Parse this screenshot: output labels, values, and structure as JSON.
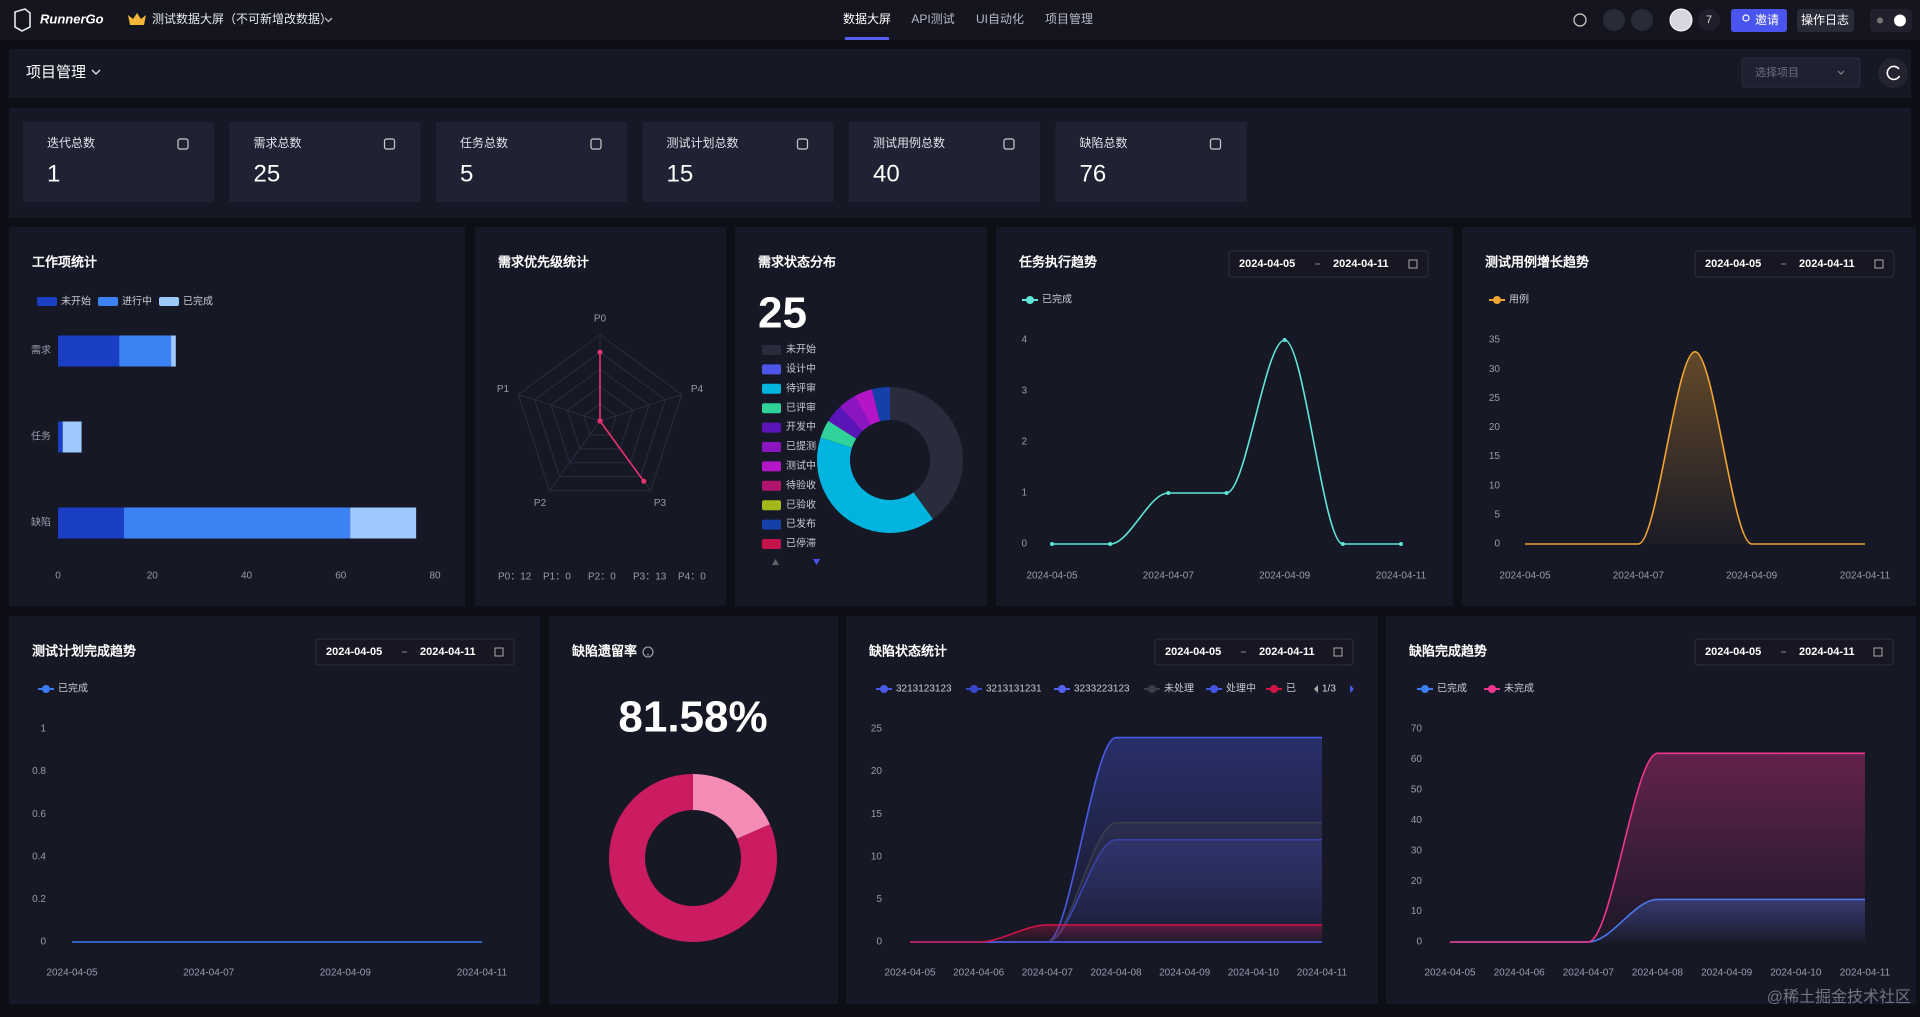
{
  "nav": {
    "logo": "RunnerGo",
    "project": "测试数据大屏（不可新增改数据）",
    "tabs": [
      "数据大屏",
      "API测试",
      "UI自动化",
      "项目管理"
    ],
    "active_tab": 0,
    "member_count": 7,
    "invite": "邀请",
    "log": "操作日志"
  },
  "header": {
    "title": "项目管理",
    "select_placeholder": "选择项目"
  },
  "stats": [
    {
      "label": "迭代总数",
      "value": 1
    },
    {
      "label": "需求总数",
      "value": 25
    },
    {
      "label": "任务总数",
      "value": 5
    },
    {
      "label": "测试计划总数",
      "value": 15
    },
    {
      "label": "测试用例总数",
      "value": 40
    },
    {
      "label": "缺陷总数",
      "value": 76
    }
  ],
  "chart_data": [
    {
      "type": "bar",
      "orientation": "horizontal",
      "stacked": true,
      "title": "工作项统计",
      "categories": [
        "需求",
        "任务",
        "缺陷"
      ],
      "series": [
        {
          "name": "未开始",
          "color": "#1a3fc4",
          "values": [
            13,
            1,
            14
          ]
        },
        {
          "name": "进行中",
          "color": "#3d82f4",
          "values": [
            11,
            0,
            48
          ]
        },
        {
          "name": "已完成",
          "color": "#9ec9fd",
          "values": [
            1,
            4,
            14
          ]
        }
      ],
      "xlim": [
        0,
        80
      ],
      "xticks": [
        0,
        20,
        40,
        60,
        80
      ],
      "grid": false
    },
    {
      "type": "radar",
      "title": "需求优先级统计",
      "categories": [
        "P0",
        "P1",
        "P2",
        "P3",
        "P4"
      ],
      "values": [
        12,
        0,
        0,
        13,
        0
      ],
      "value_labels": [
        "P0：12",
        "P1：0",
        "P2：0",
        "P3：13",
        "P4：0"
      ],
      "color": "#e8336f",
      "rlim": [
        0,
        15
      ]
    },
    {
      "type": "pie",
      "donut": true,
      "clockwise": true,
      "title": "需求状态分布",
      "total": 25,
      "categories": [
        "未开始",
        "设计中",
        "待评审",
        "已评审",
        "开发中",
        "已提测",
        "测试中",
        "待验收",
        "已验收",
        "已发布",
        "已停滞"
      ],
      "values": [
        10,
        0,
        10,
        1,
        1,
        1,
        1,
        0,
        0,
        1,
        0
      ],
      "colors": [
        "#2b2c3b",
        "#4e55e8",
        "#00b4e0",
        "#2fd39a",
        "#5b14b8",
        "#8b15c0",
        "#b315c7",
        "#b0156e",
        "#a5b81a",
        "#1440a8",
        "#c4124a"
      ]
    },
    {
      "type": "line",
      "title": "任务执行趋势",
      "date_range": [
        "2024-04-05",
        "2024-04-11"
      ],
      "categories": [
        "2024-04-05",
        null,
        "2024-04-07",
        null,
        "2024-04-09",
        null,
        "2024-04-11"
      ],
      "series": [
        {
          "name": "已完成",
          "color": "#5ee6d8",
          "values": [
            0,
            0,
            1,
            1,
            4,
            0,
            0
          ]
        }
      ],
      "ylim": [
        0,
        4
      ],
      "yticks": [
        0,
        1,
        2,
        3,
        4
      ],
      "smooth": true,
      "symbols": true,
      "area": false,
      "grid": false
    },
    {
      "type": "line",
      "title": "测试用例增长趋势",
      "date_range": [
        "2024-04-05",
        "2024-04-11"
      ],
      "categories": [
        "2024-04-05",
        null,
        "2024-04-07",
        null,
        "2024-04-09",
        null,
        "2024-04-11"
      ],
      "series": [
        {
          "name": "用例",
          "color": "#f0a431",
          "values": [
            0,
            0,
            0,
            33,
            0,
            0,
            0
          ]
        }
      ],
      "ylim": [
        0,
        35
      ],
      "yticks": [
        0,
        5,
        10,
        15,
        20,
        25,
        30,
        35
      ],
      "smooth": true,
      "symbols": false,
      "area": true,
      "grid": false
    },
    {
      "type": "line",
      "title": "测试计划完成趋势",
      "date_range": [
        "2024-04-05",
        "2024-04-11"
      ],
      "categories": [
        "2024-04-05",
        null,
        "2024-04-07",
        null,
        "2024-04-09",
        null,
        "2024-04-11"
      ],
      "series": [
        {
          "name": "已完成",
          "color": "#3b7bf6",
          "values": [
            0,
            0,
            0,
            0,
            0,
            0,
            0
          ]
        }
      ],
      "ylim": [
        0,
        1
      ],
      "yticks": [
        0,
        0.2,
        0.4,
        0.6,
        0.8,
        1
      ],
      "smooth": true,
      "symbols": false,
      "area": false,
      "grid": false
    },
    {
      "type": "pie",
      "donut": true,
      "clockwise": false,
      "title": "缺陷遗留率",
      "help_icon": true,
      "values": [
        81.58,
        18.42
      ],
      "value_labels": [
        "81.58%",
        null
      ],
      "colors": [
        "#cc1c61",
        "#f48cb6"
      ]
    },
    {
      "type": "line",
      "title": "缺陷状态统计",
      "date_range": [
        "2024-04-05",
        "2024-04-11"
      ],
      "categories": [
        "2024-04-05",
        "2024-04-06",
        "2024-04-07",
        "2024-04-08",
        "2024-04-09",
        "2024-04-10",
        "2024-04-11"
      ],
      "series": [
        {
          "name": "3213123123",
          "color": "#4a5be6",
          "values": [
            0,
            0,
            0,
            24,
            24,
            24,
            24
          ]
        },
        {
          "name": "3213131231",
          "color": "#3a46c9",
          "values": [
            0,
            0,
            0,
            12,
            12,
            12,
            12
          ]
        },
        {
          "name": "3233223123",
          "color": "#5461f0",
          "values": [
            0,
            0,
            0,
            0,
            0,
            0,
            0
          ]
        },
        {
          "name": "未处理",
          "color": "#3b3c4c",
          "values": [
            0,
            0,
            0,
            14,
            14,
            14,
            14
          ]
        },
        {
          "name": "处理中",
          "color": "#4756e0",
          "values": [
            0,
            0,
            0,
            0,
            0,
            0,
            0
          ]
        },
        {
          "name": "已",
          "color": "#cf1446",
          "values": [
            0,
            0,
            2,
            2,
            2,
            2,
            2
          ]
        }
      ],
      "legend_page": "1/3",
      "ylim": [
        0,
        25
      ],
      "yticks": [
        0,
        5,
        10,
        15,
        20,
        25
      ],
      "smooth": true,
      "symbols": false,
      "area": true,
      "grid": false
    },
    {
      "type": "line",
      "title": "缺陷完成趋势",
      "date_range": [
        "2024-04-05",
        "2024-04-11"
      ],
      "categories": [
        "2024-04-05",
        "2024-04-06",
        "2024-04-07",
        "2024-04-08",
        "2024-04-09",
        "2024-04-10",
        "2024-04-11"
      ],
      "series": [
        {
          "name": "已完成",
          "color": "#3d7cf5",
          "values": [
            0,
            0,
            0,
            14,
            14,
            14,
            14
          ]
        },
        {
          "name": "未完成",
          "color": "#f0368f",
          "values": [
            0,
            0,
            0,
            62,
            62,
            62,
            62
          ]
        }
      ],
      "ylim": [
        0,
        70
      ],
      "yticks": [
        0,
        10,
        20,
        30,
        40,
        50,
        60,
        70
      ],
      "smooth": true,
      "symbols": false,
      "area": true,
      "grid": false
    }
  ],
  "watermark": "@稀土掘金技术社区"
}
